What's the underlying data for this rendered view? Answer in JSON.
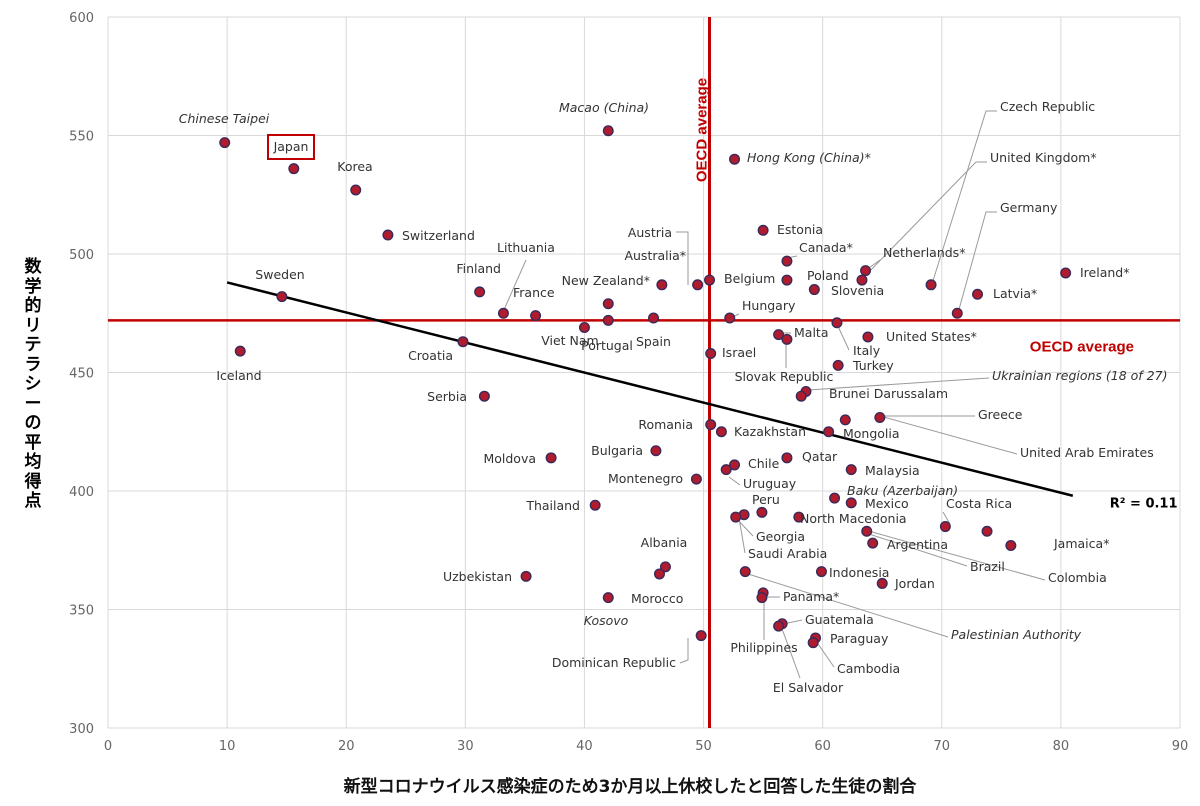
{
  "chart_data": {
    "type": "scatter",
    "xlabel": "新型コロナウイルス感染症のため3か月以上休校したと回答した生徒の割合",
    "ylabel": "数学的リテラシーの平均得点",
    "xlim": [
      0,
      90
    ],
    "ylim": [
      300,
      600
    ],
    "xticks": [
      "0",
      "10",
      "20",
      "30",
      "40",
      "50",
      "60",
      "70",
      "80",
      "90"
    ],
    "yticks": [
      "300",
      "350",
      "400",
      "450",
      "500",
      "550",
      "600"
    ],
    "grid": true,
    "oecd_average_label": "OECD average",
    "oecd_average_x": 50.5,
    "oecd_average_y": 472,
    "trendline": {
      "x": [
        10,
        81
      ],
      "y": [
        488,
        398
      ],
      "r2_label": "R² = 0.11"
    },
    "highlight": "Japan",
    "colors": {
      "point": "#b01c2e",
      "point_outline": "#3a2a5a",
      "oecd": "#c00000",
      "trend": "#000000",
      "grid": "#d9d9d9"
    },
    "points": [
      {
        "name": "Chinese Taipei",
        "x": 9.8,
        "y": 547,
        "italic": true
      },
      {
        "name": "Japan",
        "x": 15.6,
        "y": 536
      },
      {
        "name": "Korea",
        "x": 20.8,
        "y": 527
      },
      {
        "name": "Switzerland",
        "x": 23.5,
        "y": 508
      },
      {
        "name": "Sweden",
        "x": 14.6,
        "y": 482
      },
      {
        "name": "Iceland",
        "x": 11.1,
        "y": 459
      },
      {
        "name": "Finland",
        "x": 31.2,
        "y": 484
      },
      {
        "name": "Lithuania",
        "x": 33.2,
        "y": 475
      },
      {
        "name": "France",
        "x": 35.9,
        "y": 474
      },
      {
        "name": "Croatia",
        "x": 29.8,
        "y": 463
      },
      {
        "name": "Serbia",
        "x": 31.6,
        "y": 440
      },
      {
        "name": "Viet Nam",
        "x": 40.0,
        "y": 469
      },
      {
        "name": "Portugal",
        "x": 42.0,
        "y": 472
      },
      {
        "name": "Spain",
        "x": 45.8,
        "y": 473
      },
      {
        "name": "Macao (China)",
        "x": 42.0,
        "y": 552,
        "italic": true
      },
      {
        "name": "New Zealand*",
        "x": 42.0,
        "y": 479
      },
      {
        "name": "Austria",
        "x": 49.5,
        "y": 487
      },
      {
        "name": "Australia*",
        "x": 46.5,
        "y": 487
      },
      {
        "name": "Belgium",
        "x": 50.5,
        "y": 489
      },
      {
        "name": "Hong Kong (China)*",
        "x": 52.6,
        "y": 540,
        "italic": true
      },
      {
        "name": "Estonia",
        "x": 55.0,
        "y": 510
      },
      {
        "name": "Canada*",
        "x": 57.0,
        "y": 497
      },
      {
        "name": "Poland",
        "x": 57.0,
        "y": 489
      },
      {
        "name": "Slovenia",
        "x": 59.3,
        "y": 485
      },
      {
        "name": "Hungary",
        "x": 52.2,
        "y": 473
      },
      {
        "name": "Netherlands*",
        "x": 63.6,
        "y": 493
      },
      {
        "name": "Czech Republic",
        "x": 69.1,
        "y": 487
      },
      {
        "name": "United Kingdom*",
        "x": 63.3,
        "y": 489
      },
      {
        "name": "Germany",
        "x": 71.3,
        "y": 475
      },
      {
        "name": "Latvia*",
        "x": 73.0,
        "y": 483
      },
      {
        "name": "Ireland*",
        "x": 80.4,
        "y": 492
      },
      {
        "name": "Malta",
        "x": 56.3,
        "y": 466
      },
      {
        "name": "Slovak Republic",
        "x": 57.0,
        "y": 464
      },
      {
        "name": "Italy",
        "x": 61.2,
        "y": 471
      },
      {
        "name": "Turkey",
        "x": 61.3,
        "y": 453
      },
      {
        "name": "United States*",
        "x": 63.8,
        "y": 465
      },
      {
        "name": "Israel",
        "x": 50.6,
        "y": 458
      },
      {
        "name": "Ukrainian regions (18 of 27)",
        "x": 58.6,
        "y": 442,
        "italic": true
      },
      {
        "name": "Brunei Darussalam",
        "x": 58.2,
        "y": 440
      },
      {
        "name": "Greece",
        "x": 64.8,
        "y": 431
      },
      {
        "name": "United Arab Emirates",
        "x": 61.9,
        "y": 430
      },
      {
        "name": "Mongolia",
        "x": 60.5,
        "y": 425
      },
      {
        "name": "Romania",
        "x": 50.6,
        "y": 428
      },
      {
        "name": "Kazakhstan",
        "x": 51.5,
        "y": 425
      },
      {
        "name": "Bulgaria",
        "x": 46.0,
        "y": 417
      },
      {
        "name": "Moldova",
        "x": 37.2,
        "y": 414
      },
      {
        "name": "Qatar",
        "x": 57.0,
        "y": 414
      },
      {
        "name": "Malaysia",
        "x": 62.4,
        "y": 409
      },
      {
        "name": "Chile",
        "x": 52.6,
        "y": 411
      },
      {
        "name": "Uruguay",
        "x": 51.9,
        "y": 409
      },
      {
        "name": "Montenegro",
        "x": 49.4,
        "y": 405
      },
      {
        "name": "Baku (Azerbaijan)",
        "x": 61.0,
        "y": 397,
        "italic": true
      },
      {
        "name": "Mexico",
        "x": 62.4,
        "y": 395
      },
      {
        "name": "Thailand",
        "x": 40.9,
        "y": 394
      },
      {
        "name": "Peru",
        "x": 54.9,
        "y": 391
      },
      {
        "name": "North Macedonia",
        "x": 58.0,
        "y": 389
      },
      {
        "name": "Georgia",
        "x": 53.4,
        "y": 390
      },
      {
        "name": "Saudi Arabia",
        "x": 52.7,
        "y": 389
      },
      {
        "name": "Costa Rica",
        "x": 70.3,
        "y": 385
      },
      {
        "name": "Argentina",
        "x": 63.7,
        "y": 383
      },
      {
        "name": "Brazil",
        "x": 64.2,
        "y": 378
      },
      {
        "name": "Jamaica*",
        "x": 75.8,
        "y": 377
      },
      {
        "name": "Colombia",
        "x": 73.8,
        "y": 383
      },
      {
        "name": "Albania",
        "x": 46.8,
        "y": 368
      },
      {
        "name": "Uzbekistan",
        "x": 35.1,
        "y": 364
      },
      {
        "name": "Morocco",
        "x": 46.3,
        "y": 365
      },
      {
        "name": "Kosovo",
        "x": 42.0,
        "y": 355,
        "italic": true
      },
      {
        "name": "Palestinian Authority",
        "x": 53.5,
        "y": 366,
        "italic": true
      },
      {
        "name": "Indonesia",
        "x": 59.9,
        "y": 366
      },
      {
        "name": "Jordan",
        "x": 65.0,
        "y": 361
      },
      {
        "name": "Panama*",
        "x": 55.0,
        "y": 357
      },
      {
        "name": "Philippines",
        "x": 54.9,
        "y": 355
      },
      {
        "name": "Guatemala",
        "x": 56.6,
        "y": 344
      },
      {
        "name": "El Salvador",
        "x": 56.3,
        "y": 343
      },
      {
        "name": "Paraguay",
        "x": 59.4,
        "y": 338
      },
      {
        "name": "Cambodia",
        "x": 59.2,
        "y": 336
      },
      {
        "name": "Dominican Republic",
        "x": 49.8,
        "y": 339
      }
    ]
  }
}
